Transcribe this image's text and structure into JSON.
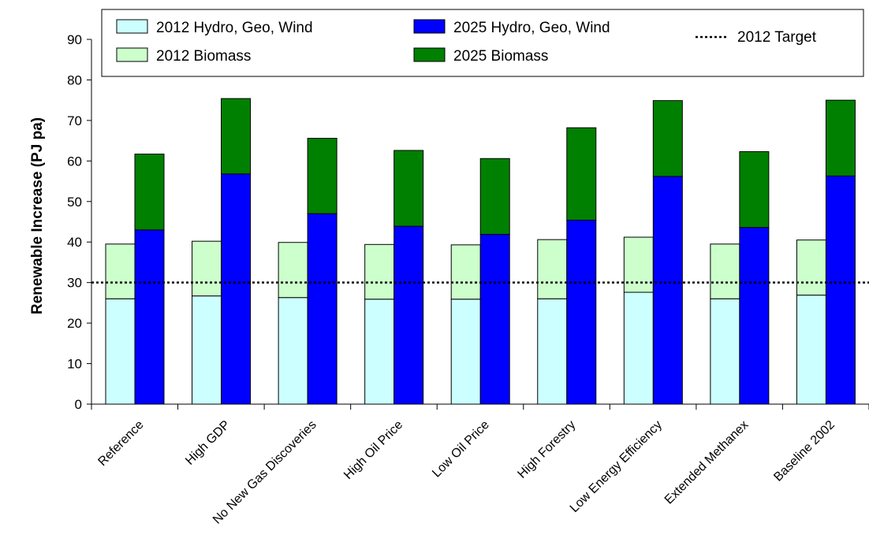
{
  "chart_data": {
    "type": "bar",
    "stacked": true,
    "xlabel": "",
    "ylabel": "Renewable Increase (PJ pa)",
    "ylim": [
      0,
      90
    ],
    "yticks": [
      0,
      10,
      20,
      30,
      40,
      50,
      60,
      70,
      80,
      90
    ],
    "grid": false,
    "legend_position": "top",
    "categories": [
      "Reference",
      "High GDP",
      "No New Gas Discoveries",
      "High Oil Price",
      "Low Oil Price",
      "High Forestry",
      "Low Energy Efficiency",
      "Extended Methanex",
      "Baseline 2002"
    ],
    "groups": [
      {
        "year": "2012",
        "stack": [
          {
            "name": "2012 Hydro, Geo, Wind",
            "color": "#ccffff",
            "values": [
              26.0,
              26.7,
              26.3,
              25.9,
              25.9,
              26.0,
              27.6,
              26.0,
              26.9
            ]
          },
          {
            "name": "2012 Biomass",
            "color": "#ccffcc",
            "values": [
              13.5,
              13.5,
              13.6,
              13.5,
              13.4,
              14.6,
              13.6,
              13.5,
              13.6
            ]
          }
        ]
      },
      {
        "year": "2025",
        "stack": [
          {
            "name": "2025 Hydro, Geo, Wind",
            "color": "#0000ff",
            "values": [
              43.0,
              56.8,
              47.0,
              43.9,
              41.9,
              45.4,
              56.2,
              43.6,
              56.3
            ]
          },
          {
            "name": "2025 Biomass",
            "color": "#008000",
            "values": [
              18.7,
              18.6,
              18.6,
              18.7,
              18.7,
              22.8,
              18.7,
              18.7,
              18.7
            ]
          }
        ]
      }
    ],
    "reference_line": {
      "name": "2012 Target",
      "value": 30,
      "style": "dotted"
    },
    "legend": [
      {
        "label": "2012 Hydro, Geo, Wind",
        "color": "#ccffff",
        "type": "box"
      },
      {
        "label": "2025 Hydro, Geo, Wind",
        "color": "#0000ff",
        "type": "box"
      },
      {
        "label": "2012 Target",
        "type": "dotted-line"
      },
      {
        "label": "2012 Biomass",
        "color": "#ccffcc",
        "type": "box"
      },
      {
        "label": "2025 Biomass",
        "color": "#008000",
        "type": "box"
      }
    ]
  }
}
